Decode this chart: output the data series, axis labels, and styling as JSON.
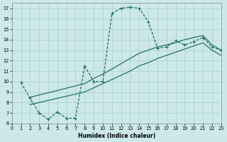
{
  "background_color": "#cce8e8",
  "grid_color": "#aacece",
  "line_color": "#1a6b60",
  "xlabel": "Humidex (Indice chaleur)",
  "xlim": [
    0,
    23
  ],
  "ylim": [
    6,
    17.5
  ],
  "xticks": [
    0,
    1,
    2,
    3,
    4,
    5,
    6,
    7,
    8,
    9,
    10,
    11,
    12,
    13,
    14,
    15,
    16,
    17,
    18,
    19,
    20,
    21,
    22,
    23
  ],
  "yticks": [
    6,
    7,
    8,
    9,
    10,
    11,
    12,
    13,
    14,
    15,
    16,
    17
  ],
  "curve1_x": [
    1,
    2,
    3,
    4,
    5,
    6,
    7,
    8,
    9,
    10,
    11,
    12,
    13,
    14,
    15,
    16,
    17,
    18,
    19,
    20,
    21,
    22,
    23
  ],
  "curve1_y": [
    9.9,
    8.4,
    7.0,
    6.4,
    7.1,
    6.5,
    6.5,
    11.5,
    10.0,
    10.0,
    16.5,
    17.0,
    17.1,
    17.0,
    15.7,
    13.2,
    13.3,
    13.9,
    13.5,
    13.8,
    14.2,
    13.3,
    13.0
  ],
  "curve2_x": [
    2,
    8,
    9,
    10,
    11,
    12,
    13,
    14,
    15,
    16,
    17,
    18,
    19,
    20,
    21,
    22,
    23
  ],
  "curve2_y": [
    8.5,
    9.8,
    10.3,
    10.7,
    11.2,
    11.7,
    12.2,
    12.7,
    13.0,
    13.3,
    13.5,
    13.7,
    14.0,
    14.2,
    14.4,
    13.5,
    13.0
  ],
  "curve3_x": [
    2,
    8,
    9,
    10,
    11,
    12,
    13,
    14,
    15,
    16,
    17,
    18,
    19,
    20,
    21,
    22,
    23
  ],
  "curve3_y": [
    7.8,
    9.0,
    9.4,
    9.8,
    10.2,
    10.6,
    11.0,
    11.5,
    11.8,
    12.2,
    12.5,
    12.8,
    13.1,
    13.4,
    13.7,
    13.0,
    12.5
  ]
}
